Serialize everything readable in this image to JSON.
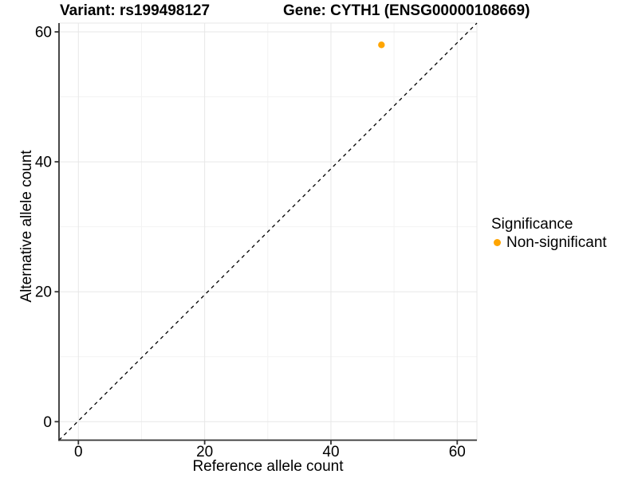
{
  "chart_data": {
    "type": "scatter",
    "title_left": "Variant: rs199498127",
    "title_right": "Gene: CYTH1 (ENSG00000108669)",
    "xlabel": "Reference allele count",
    "ylabel": "Alternative allele count",
    "xticks": [
      0,
      20,
      40,
      60
    ],
    "yticks": [
      0,
      20,
      40,
      60
    ],
    "minor_xticks": [
      10,
      30,
      50
    ],
    "minor_yticks": [
      10,
      30,
      50
    ],
    "xlim": [
      -3,
      63
    ],
    "ylim": [
      -3,
      61.5
    ],
    "grid": "major and minor light-gray gridlines on white panel",
    "identity_line": {
      "slope": 1,
      "intercept": 0,
      "style": "dashed",
      "color": "#000000"
    },
    "series": [
      {
        "name": "Non-significant",
        "color": "#FFA500",
        "points": [
          {
            "x": 48,
            "y": 58
          }
        ]
      }
    ],
    "legend": {
      "title": "Significance",
      "position": "right",
      "items": [
        {
          "label": "Non-significant",
          "color": "#FFA500"
        }
      ]
    },
    "colors": {
      "point": "#FFA500",
      "grid_major": "#E7E7E7",
      "grid_minor": "#F3F3F3",
      "panel_border": "#E7E7E7",
      "axis": "#333333",
      "diagonal": "#000000",
      "text": "#000000"
    }
  }
}
